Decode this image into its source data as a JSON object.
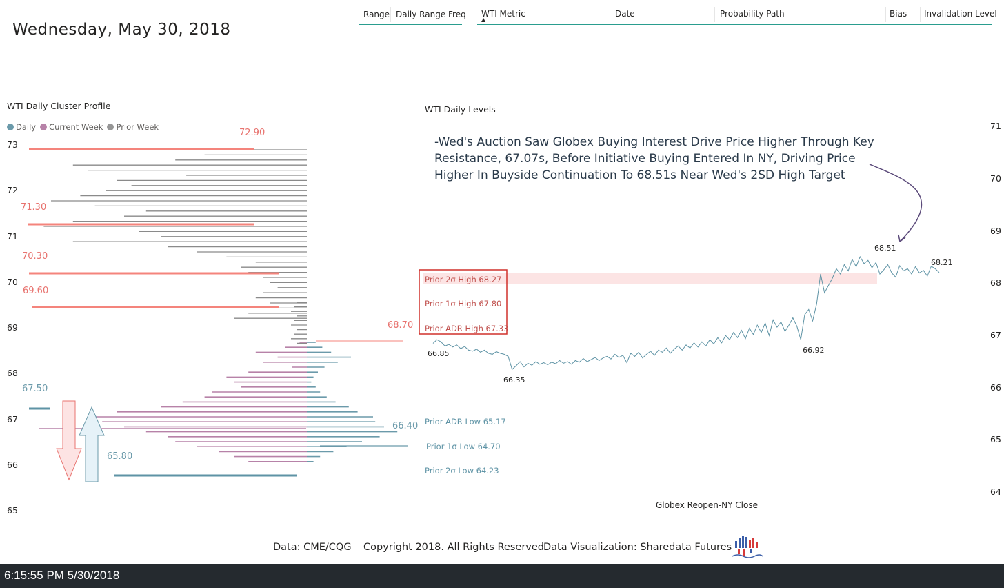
{
  "page": {
    "date_title": "Wednesday, May 30, 2018"
  },
  "slicers": {
    "range_label": "Range",
    "range_freq_label": "Daily Range Freq"
  },
  "table_header": {
    "columns": [
      "WTI Metric",
      "Date",
      "Probability Path",
      "Bias",
      "Invalidation Level"
    ],
    "sort_indicator": "▲"
  },
  "cluster_profile": {
    "title": "WTI Daily Cluster Profile",
    "legend": [
      {
        "label": "Daily",
        "color": "#6b9aaa"
      },
      {
        "label": "Current Week",
        "color": "#b782a8"
      },
      {
        "label": "Prior Week",
        "color": "#969696"
      }
    ],
    "y_ticks": [
      "73",
      "72",
      "71",
      "70",
      "69",
      "68",
      "67",
      "66",
      "65"
    ],
    "levels": [
      {
        "label": "72.90",
        "value": 72.9,
        "color": "#f4847c"
      },
      {
        "label": "71.30",
        "value": 71.3,
        "color": "#f4847c"
      },
      {
        "label": "70.30",
        "value": 70.3,
        "color": "#f4847c"
      },
      {
        "label": "69.60",
        "value": 69.6,
        "color": "#f4847c"
      },
      {
        "label": "68.70",
        "value": 68.7,
        "color": "#f4847c"
      },
      {
        "label": "67.50",
        "value": 67.5,
        "color": "#6b9aaa"
      },
      {
        "label": "66.40",
        "value": 66.4,
        "color": "#6b9aaa"
      },
      {
        "label": "65.80",
        "value": 65.8,
        "color": "#6b9aaa"
      }
    ]
  },
  "daily_levels": {
    "title": "WTI Daily Levels",
    "annotation": "-Wed's Auction Saw Globex Buying Interest Drive Price Higher Through Key Resistance, 67.07s, Before Initiative Buying Entered In NY, Driving  Price Higher In Buyside Continuation To 68.51s Near Wed's 2SD High Target",
    "ref_high": [
      "Prior 2σ High 68.27",
      "Prior 1σ High 67.80",
      "Prior ADR High 67.33"
    ],
    "ref_low": [
      "Prior ADR Low 65.17",
      "Prior 1σ Low 64.70",
      "Prior 2σ Low 64.23"
    ],
    "point_labels": [
      "68.51",
      "68.21",
      "66.85",
      "66.35",
      "66.92"
    ],
    "x_label": "Globex Reopen-NY Close",
    "y_ticks": [
      "71",
      "70",
      "69",
      "68",
      "67",
      "66",
      "65",
      "64"
    ]
  },
  "chart_data": {
    "type": "line",
    "title": "WTI Daily Levels",
    "xlabel": "Globex Reopen-NY Close",
    "ylabel": "",
    "ylim": [
      64,
      71
    ],
    "series": [
      {
        "values": [
          66.85,
          66.92,
          66.88,
          66.8,
          66.83,
          66.78,
          66.82,
          66.75,
          66.79,
          66.72,
          66.7,
          66.74,
          66.68,
          66.72,
          66.66,
          66.64,
          66.69,
          66.66,
          66.64,
          66.6,
          66.35,
          66.42,
          66.5,
          66.4,
          66.47,
          66.43,
          66.5,
          66.45,
          66.48,
          66.44,
          66.49,
          66.46,
          66.52,
          66.47,
          66.5,
          66.45,
          66.52,
          66.49,
          66.56,
          66.5,
          66.54,
          66.58,
          66.52,
          66.57,
          66.6,
          66.55,
          66.64,
          66.58,
          66.62,
          66.48,
          66.66,
          66.6,
          66.68,
          66.57,
          66.64,
          66.7,
          66.62,
          66.72,
          66.68,
          66.76,
          66.66,
          66.74,
          66.8,
          66.72,
          66.82,
          66.76,
          66.86,
          66.78,
          66.88,
          66.8,
          66.92,
          66.84,
          66.96,
          66.86,
          67.0,
          66.92,
          67.06,
          66.96,
          67.1,
          66.94,
          67.14,
          67.02,
          67.2,
          67.06,
          67.24,
          67.0,
          67.3,
          67.16,
          67.26,
          67.08,
          67.2,
          67.34,
          67.18,
          66.92,
          67.4,
          67.5,
          67.28,
          67.6,
          68.18,
          67.82,
          67.96,
          68.1,
          68.28,
          68.18,
          68.36,
          68.24,
          68.46,
          68.32,
          68.51,
          68.38,
          68.44,
          68.3,
          68.4,
          68.18,
          68.26,
          68.36,
          68.2,
          68.12,
          68.34,
          68.24,
          68.28,
          68.18,
          68.32,
          68.2,
          68.25,
          68.14,
          68.33,
          68.28,
          68.21
        ]
      }
    ],
    "reference_lines": [
      {
        "label": "Prior 2σ High",
        "value": 68.27
      },
      {
        "label": "Prior 1σ High",
        "value": 67.8
      },
      {
        "label": "Prior ADR High",
        "value": 67.33
      },
      {
        "label": "Prior ADR Low",
        "value": 65.17
      },
      {
        "label": "Prior 1σ Low",
        "value": 64.7
      },
      {
        "label": "Prior 2σ Low",
        "value": 64.23
      }
    ],
    "grid": false
  },
  "footer": {
    "data_source": "Data: CME/CQG",
    "copyright": "Copyright 2018. All Rights Reserved.",
    "visualization": "Data Visualization: Sharedata Futures"
  },
  "statusbar": {
    "timestamp": "6:15:55 PM 5/30/2018"
  }
}
